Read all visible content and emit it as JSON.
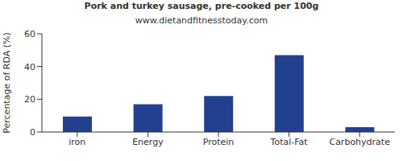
{
  "chart_data": {
    "type": "bar",
    "title": "Pork and turkey sausage, pre-cooked per 100g",
    "subtitle": "www.dietandfitnesstoday.com",
    "y_label": "Percentage of RDA (%)",
    "categories": [
      "iron",
      "Energy",
      "Protein",
      "Total-Fat",
      "Carbohydrate"
    ],
    "values": [
      9.5,
      17,
      22,
      47,
      3
    ],
    "color": "#233f8f",
    "ylim": [
      0,
      60
    ],
    "yticks": [
      0,
      20,
      40,
      60
    ],
    "grid": false
  }
}
